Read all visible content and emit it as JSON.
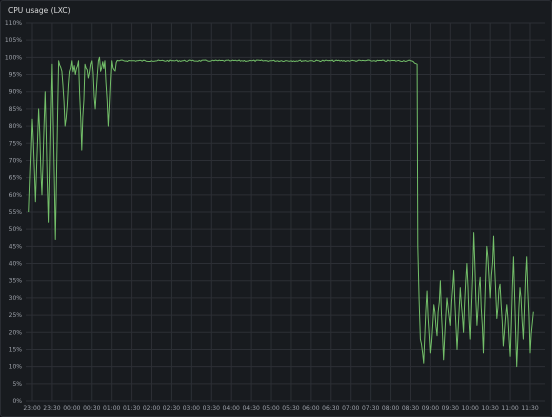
{
  "panel": {
    "title": "CPU usage (LXC)"
  },
  "chart_data": {
    "type": "line",
    "title": "CPU usage (LXC)",
    "xlabel": "",
    "ylabel": "",
    "y_unit": "%",
    "ylim": [
      0,
      110
    ],
    "y_ticks": [
      0,
      5,
      10,
      15,
      20,
      25,
      30,
      35,
      40,
      45,
      50,
      55,
      60,
      65,
      70,
      75,
      80,
      85,
      90,
      95,
      100,
      105,
      110
    ],
    "y_tick_labels": [
      "0%",
      "5%",
      "10%",
      "15%",
      "20%",
      "25%",
      "30%",
      "35%",
      "40%",
      "45%",
      "50%",
      "55%",
      "60%",
      "65%",
      "70%",
      "75%",
      "80%",
      "85%",
      "90%",
      "95%",
      "100%",
      "105%",
      "110%"
    ],
    "x_ticks": [
      "23:00",
      "23:30",
      "00:00",
      "00:30",
      "01:00",
      "01:30",
      "02:00",
      "02:30",
      "03:00",
      "03:30",
      "04:00",
      "04:30",
      "05:00",
      "05:30",
      "06:00",
      "06:30",
      "07:00",
      "07:30",
      "08:00",
      "08:30",
      "09:00",
      "09:30",
      "10:00",
      "10:30",
      "11:00",
      "11:30"
    ],
    "grid": true,
    "legend": "none",
    "series": [
      {
        "color": "#73bf69",
        "x": [
          "22:55",
          "23:00",
          "23:05",
          "23:10",
          "23:15",
          "23:20",
          "23:25",
          "23:30",
          "23:35",
          "23:40",
          "23:45",
          "23:50",
          "23:55",
          "00:00",
          "00:05",
          "00:10",
          "00:15",
          "00:20",
          "00:25",
          "00:30",
          "00:35",
          "00:40",
          "00:45",
          "00:50",
          "00:55",
          "01:00",
          "01:05",
          "01:10",
          "01:30",
          "02:00",
          "02:30",
          "03:00",
          "03:30",
          "04:00",
          "04:30",
          "05:00",
          "05:30",
          "06:00",
          "06:30",
          "07:00",
          "07:30",
          "08:00",
          "08:30",
          "08:40",
          "08:41",
          "08:45",
          "08:50",
          "08:55",
          "09:00",
          "09:05",
          "09:10",
          "09:15",
          "09:20",
          "09:25",
          "09:30",
          "09:35",
          "09:40",
          "09:45",
          "09:50",
          "09:55",
          "10:00",
          "10:05",
          "10:10",
          "10:15",
          "10:20",
          "10:25",
          "10:30",
          "10:35",
          "10:40",
          "10:45",
          "10:50",
          "10:55",
          "11:00",
          "11:05",
          "11:10",
          "11:15",
          "11:20",
          "11:25",
          "11:30",
          "11:35"
        ],
        "values": [
          55,
          82,
          58,
          85,
          60,
          90,
          52,
          98,
          47,
          99,
          96,
          80,
          92,
          99,
          95,
          99,
          73,
          98,
          94,
          99,
          85,
          99,
          97,
          99,
          80,
          99,
          96,
          99,
          99,
          99,
          99,
          99,
          99,
          99,
          99,
          99,
          99,
          99,
          99,
          99,
          99,
          99,
          99,
          98,
          45,
          18,
          11,
          32,
          14,
          28,
          19,
          35,
          12,
          30,
          22,
          38,
          15,
          33,
          20,
          40,
          18,
          49,
          22,
          36,
          14,
          45,
          30,
          48,
          24,
          34,
          16,
          28,
          13,
          42,
          10,
          33,
          18,
          42,
          14,
          26
        ]
      }
    ]
  }
}
